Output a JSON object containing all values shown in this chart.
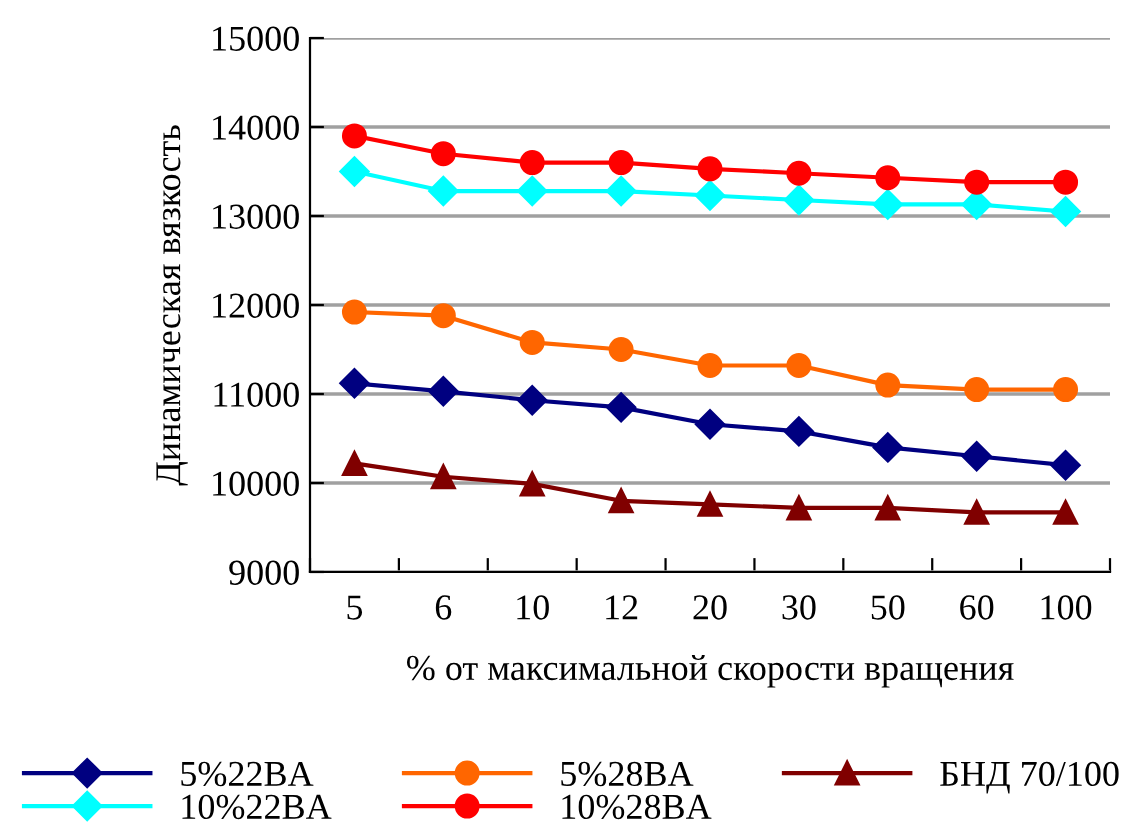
{
  "chart_data": {
    "type": "line",
    "xlabel": "% от максимальной скорости вращения",
    "ylabel": "Динамическая вязкость",
    "categories": [
      "5",
      "6",
      "10",
      "12",
      "20",
      "30",
      "50",
      "60",
      "100"
    ],
    "series": [
      {
        "name": "5%22BA",
        "color": "#000080",
        "marker": "diamond",
        "values": [
          11120,
          11030,
          10930,
          10850,
          10660,
          10580,
          10400,
          10300,
          10200
        ]
      },
      {
        "name": "5%28BA",
        "color": "#ff6600",
        "marker": "circle",
        "values": [
          11920,
          11880,
          11580,
          11500,
          11320,
          11320,
          11100,
          11050,
          11050
        ]
      },
      {
        "name": "БНД 70/100",
        "color": "#800000",
        "marker": "triangle",
        "values": [
          10220,
          10070,
          9990,
          9800,
          9760,
          9720,
          9720,
          9670,
          9670
        ]
      },
      {
        "name": "10%22BA",
        "color": "#00ffff",
        "marker": "diamond",
        "values": [
          13500,
          13280,
          13280,
          13280,
          13230,
          13180,
          13130,
          13130,
          13050
        ]
      },
      {
        "name": "10%28BA",
        "color": "#ff0000",
        "marker": "circle",
        "values": [
          13900,
          13700,
          13600,
          13600,
          13530,
          13480,
          13430,
          13380,
          13380
        ]
      }
    ],
    "ylim": [
      9000,
      15000
    ],
    "yticks": [
      9000,
      10000,
      11000,
      12000,
      13000,
      14000,
      15000
    ],
    "grid": "y",
    "legend": "bottom",
    "line_style": "solid"
  }
}
